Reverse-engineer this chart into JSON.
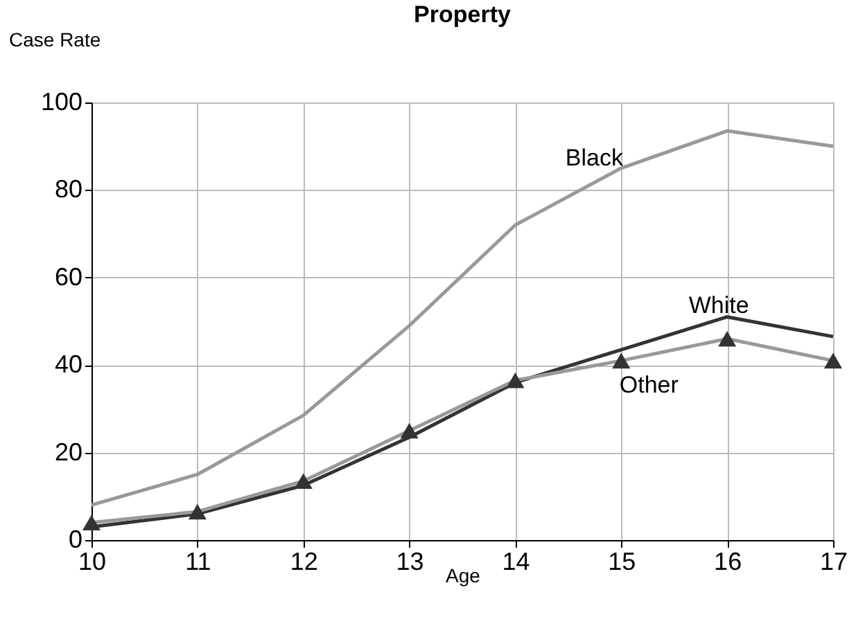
{
  "chart_data": {
    "type": "line",
    "title": "Property",
    "xlabel": "Age",
    "ylabel": "Case Rate",
    "x": [
      10,
      11,
      12,
      13,
      14,
      15,
      16,
      17
    ],
    "series": [
      {
        "name": "Black",
        "color": "#999999",
        "marker": "none",
        "values": [
          8,
          15,
          28.5,
          49,
          72,
          85,
          93.5,
          90
        ]
      },
      {
        "name": "White",
        "color": "#333333",
        "marker": "none",
        "values": [
          3,
          6,
          12.5,
          23.5,
          36,
          43.5,
          51,
          46.5
        ]
      },
      {
        "name": "Other",
        "color": "#999999",
        "marker": "triangle",
        "values": [
          4,
          6.5,
          13.5,
          25,
          36.5,
          41,
          46,
          41
        ]
      }
    ],
    "xlim": [
      10,
      17
    ],
    "xticks": [
      10,
      11,
      12,
      13,
      14,
      15,
      16,
      17
    ],
    "ylim": [
      0,
      100
    ],
    "yticks": [
      0,
      20,
      40,
      60,
      80,
      100
    ],
    "grid": true,
    "legend": false
  }
}
